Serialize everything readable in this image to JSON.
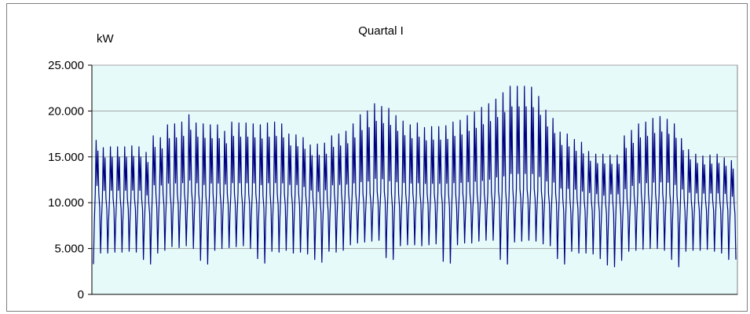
{
  "chart_data": {
    "type": "line",
    "title": "Quartal I",
    "ylabel": "kW",
    "xlabel": "",
    "ylim": [
      0,
      25000
    ],
    "y_ticks": [
      0,
      5000,
      10000,
      15000,
      20000,
      25000
    ],
    "y_tick_labels": [
      "0",
      "5.000",
      "10.000",
      "15.000",
      "20.000",
      "25.000"
    ],
    "x_ticks": [],
    "grid": true,
    "legend": "none",
    "plot_background": "#e6fafa",
    "grid_color": "#a6a6a6",
    "series_color": "#000080",
    "series": [
      {
        "n_days": 90,
        "day_peak_kw": [
          16800,
          16000,
          16100,
          16100,
          16100,
          16200,
          16100,
          15500,
          17300,
          17100,
          18500,
          18600,
          18800,
          19600,
          18700,
          18600,
          18500,
          18500,
          17800,
          18800,
          18700,
          18700,
          18600,
          18500,
          18700,
          18800,
          18600,
          17500,
          17400,
          17100,
          16300,
          16400,
          16500,
          17300,
          17500,
          17800,
          18600,
          19600,
          20000,
          20800,
          20500,
          20300,
          19500,
          18900,
          18500,
          18700,
          18200,
          18300,
          18300,
          18400,
          18800,
          19000,
          19500,
          19900,
          20400,
          20800,
          21300,
          22000,
          22700,
          22700,
          22700,
          22600,
          21600,
          20100,
          19200,
          17700,
          17500,
          16900,
          16600,
          15600,
          15300,
          15300,
          15200,
          15200,
          17300,
          17900,
          18600,
          18800,
          19200,
          19400,
          19100,
          18600,
          17000,
          15800,
          15300,
          15100,
          15200,
          15300,
          14900,
          14600
        ],
        "day_min_kw": [
          3300,
          4500,
          4500,
          4600,
          4600,
          4700,
          4600,
          3800,
          3300,
          4500,
          4800,
          5200,
          5100,
          5300,
          5000,
          3700,
          3300,
          4800,
          5000,
          5100,
          5200,
          5300,
          5000,
          3900,
          3400,
          4700,
          4600,
          4800,
          4500,
          4600,
          4400,
          3800,
          3500,
          4700,
          4600,
          4800,
          5400,
          5600,
          5700,
          5800,
          5900,
          4000,
          3800,
          5300,
          5400,
          5400,
          5300,
          5400,
          5500,
          3600,
          3400,
          5400,
          5600,
          5600,
          5800,
          5900,
          5900,
          3800,
          3300,
          5700,
          5800,
          5900,
          5800,
          5500,
          5300,
          3900,
          3300,
          4700,
          4500,
          4500,
          4400,
          3900,
          3200,
          3000,
          3700,
          4700,
          4800,
          4900,
          5000,
          5000,
          4800,
          3800,
          3000,
          4700,
          4800,
          4800,
          4900,
          4700,
          4500,
          3800
        ],
        "day_mid_kw": [
          11000,
          10500,
          10500,
          10500,
          10500,
          10500,
          10500,
          10000,
          11000,
          11000,
          11000,
          11000,
          11000,
          11200,
          11000,
          10800,
          11000,
          11000,
          11000,
          11000,
          11000,
          11000,
          11000,
          10800,
          11000,
          11000,
          11000,
          11000,
          11000,
          10800,
          10500,
          10300,
          10500,
          11000,
          11000,
          11000,
          11000,
          11000,
          11000,
          11200,
          11200,
          11000,
          11000,
          11000,
          11000,
          11000,
          11000,
          11000,
          11000,
          11000,
          11000,
          11000,
          11000,
          11000,
          11000,
          11100,
          11300,
          11300,
          11500,
          11500,
          11500,
          11500,
          11300,
          11000,
          11000,
          10500,
          10500,
          10500,
          10300,
          10300,
          10200,
          10000,
          10200,
          10200,
          10500,
          10800,
          11000,
          11000,
          11000,
          11000,
          11000,
          10800,
          10500,
          10300,
          10300,
          10300,
          10300,
          10300,
          10300,
          10000
        ]
      }
    ]
  }
}
